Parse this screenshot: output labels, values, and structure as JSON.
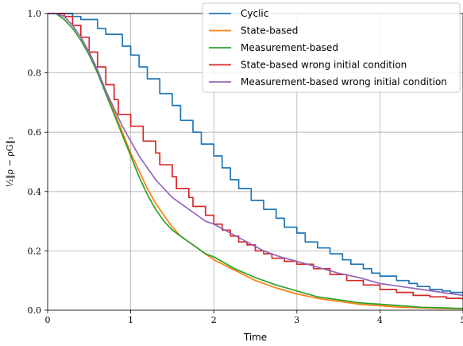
{
  "chart_data": {
    "type": "line",
    "xlabel": "Time",
    "ylabel": "½‖ρ − ρG‖₁",
    "xlim": [
      0,
      5
    ],
    "ylim": [
      0,
      1.0
    ],
    "xticks": [
      "0",
      "1",
      "2",
      "3",
      "4",
      "5"
    ],
    "yticks": [
      "0.0",
      "0.2",
      "0.4",
      "0.6",
      "0.8",
      "1.0"
    ],
    "grid": true,
    "legend_position": "top-right",
    "series": [
      {
        "name": "Cyclic",
        "color": "#1f77b4",
        "step": true,
        "x": [
          0,
          0.1,
          0.3,
          0.4,
          0.6,
          0.7,
          0.9,
          1.0,
          1.1,
          1.2,
          1.35,
          1.5,
          1.6,
          1.75,
          1.85,
          2.0,
          2.1,
          2.2,
          2.3,
          2.45,
          2.6,
          2.75,
          2.85,
          3.0,
          3.1,
          3.25,
          3.4,
          3.55,
          3.65,
          3.8,
          3.9,
          4.0,
          4.2,
          4.35,
          4.45,
          4.6,
          4.75,
          4.85,
          5.0
        ],
        "y": [
          1.0,
          1.0,
          0.99,
          0.98,
          0.95,
          0.93,
          0.89,
          0.86,
          0.82,
          0.78,
          0.73,
          0.69,
          0.64,
          0.6,
          0.56,
          0.52,
          0.48,
          0.44,
          0.41,
          0.37,
          0.34,
          0.31,
          0.28,
          0.26,
          0.23,
          0.21,
          0.19,
          0.17,
          0.155,
          0.14,
          0.125,
          0.115,
          0.1,
          0.09,
          0.08,
          0.07,
          0.065,
          0.06,
          0.055
        ]
      },
      {
        "name": "State-based",
        "color": "#ff7f0e",
        "x": [
          0,
          0.1,
          0.2,
          0.3,
          0.4,
          0.5,
          0.6,
          0.7,
          0.8,
          0.9,
          1.0,
          1.1,
          1.2,
          1.3,
          1.4,
          1.5,
          1.6,
          1.7,
          1.8,
          1.9,
          2.0,
          2.25,
          2.5,
          2.75,
          3.0,
          3.25,
          3.5,
          3.75,
          4.0,
          4.25,
          4.5,
          4.75,
          5.0
        ],
        "y": [
          1.0,
          1.0,
          0.99,
          0.96,
          0.92,
          0.87,
          0.81,
          0.74,
          0.67,
          0.6,
          0.53,
          0.47,
          0.41,
          0.36,
          0.32,
          0.28,
          0.25,
          0.23,
          0.21,
          0.19,
          0.17,
          0.135,
          0.1,
          0.075,
          0.055,
          0.04,
          0.03,
          0.02,
          0.015,
          0.01,
          0.008,
          0.006,
          0.005
        ]
      },
      {
        "name": "Measurement-based",
        "color": "#2ca02c",
        "x": [
          0,
          0.1,
          0.2,
          0.3,
          0.4,
          0.5,
          0.6,
          0.7,
          0.8,
          0.9,
          1.0,
          1.1,
          1.2,
          1.3,
          1.4,
          1.5,
          1.6,
          1.7,
          1.8,
          1.9,
          2.0,
          2.25,
          2.5,
          2.75,
          3.0,
          3.25,
          3.5,
          3.75,
          4.0,
          4.25,
          4.5,
          4.75,
          5.0
        ],
        "y": [
          1.0,
          1.0,
          0.98,
          0.95,
          0.91,
          0.86,
          0.8,
          0.73,
          0.66,
          0.59,
          0.52,
          0.45,
          0.39,
          0.34,
          0.3,
          0.27,
          0.25,
          0.23,
          0.21,
          0.19,
          0.18,
          0.14,
          0.11,
          0.085,
          0.065,
          0.045,
          0.035,
          0.025,
          0.02,
          0.015,
          0.01,
          0.008,
          0.006
        ]
      },
      {
        "name": "State-based wrong initial condition",
        "color": "#d62728",
        "step": true,
        "x": [
          0,
          0.1,
          0.2,
          0.3,
          0.4,
          0.5,
          0.6,
          0.7,
          0.8,
          0.85,
          0.9,
          1.0,
          1.15,
          1.3,
          1.35,
          1.5,
          1.55,
          1.7,
          1.75,
          1.9,
          2.0,
          2.1,
          2.2,
          2.3,
          2.4,
          2.5,
          2.6,
          2.7,
          2.85,
          3.0,
          3.2,
          3.4,
          3.6,
          3.8,
          4.0,
          4.2,
          4.4,
          4.6,
          4.8,
          5.0
        ],
        "y": [
          1.0,
          1.0,
          0.99,
          0.96,
          0.92,
          0.87,
          0.82,
          0.76,
          0.71,
          0.66,
          0.66,
          0.62,
          0.57,
          0.53,
          0.49,
          0.45,
          0.41,
          0.38,
          0.35,
          0.32,
          0.29,
          0.27,
          0.25,
          0.23,
          0.22,
          0.2,
          0.19,
          0.175,
          0.165,
          0.155,
          0.14,
          0.12,
          0.1,
          0.085,
          0.07,
          0.06,
          0.05,
          0.045,
          0.04,
          0.035
        ]
      },
      {
        "name": "Measurement-based wrong initial condition",
        "color": "#9467bd",
        "x": [
          0,
          0.1,
          0.2,
          0.3,
          0.4,
          0.5,
          0.6,
          0.7,
          0.8,
          0.9,
          1.0,
          1.1,
          1.2,
          1.3,
          1.4,
          1.5,
          1.6,
          1.7,
          1.8,
          1.9,
          2.0,
          2.2,
          2.4,
          2.6,
          2.8,
          3.0,
          3.25,
          3.5,
          3.75,
          4.0,
          4.25,
          4.5,
          4.75,
          5.0
        ],
        "y": [
          1.0,
          1.0,
          0.99,
          0.96,
          0.92,
          0.87,
          0.81,
          0.74,
          0.68,
          0.62,
          0.57,
          0.52,
          0.48,
          0.44,
          0.41,
          0.38,
          0.36,
          0.34,
          0.32,
          0.3,
          0.29,
          0.26,
          0.23,
          0.2,
          0.18,
          0.165,
          0.145,
          0.125,
          0.11,
          0.09,
          0.08,
          0.07,
          0.06,
          0.05
        ]
      }
    ]
  }
}
